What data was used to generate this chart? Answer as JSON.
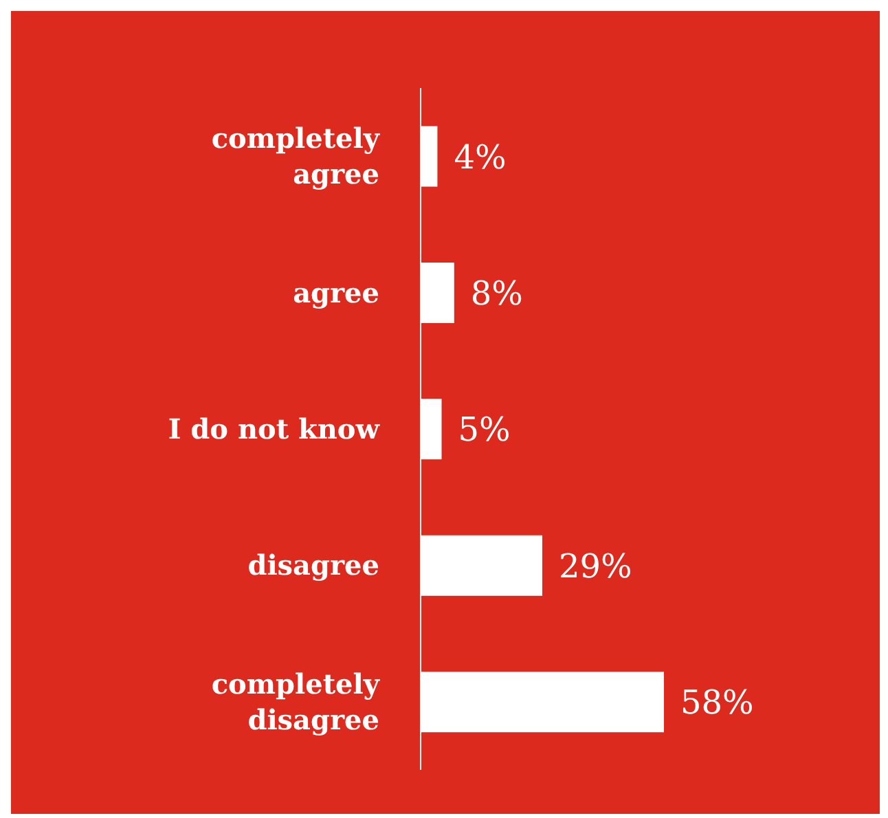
{
  "chart_data": {
    "type": "bar",
    "orientation": "horizontal",
    "categories": [
      "completely agree",
      "agree",
      "I do not know",
      "disagree",
      "completely disagree"
    ],
    "values": [
      4,
      8,
      5,
      29,
      58
    ],
    "value_labels": [
      "4%",
      "8%",
      "5%",
      "29%",
      "58%"
    ],
    "color": "#ffffff",
    "tick_labels": "y"
  }
}
